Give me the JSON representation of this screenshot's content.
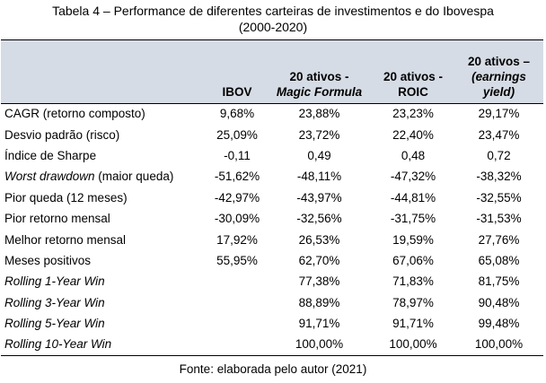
{
  "title": {
    "line1": "Tabela 4 – Performance de diferentes carteiras de investimentos e do Ibovespa",
    "line2": "(2000-2020)"
  },
  "columns": [
    {
      "line1": "",
      "line2": "",
      "line3": ""
    },
    {
      "line1": "",
      "line2": "",
      "line3": "IBOV"
    },
    {
      "line1": "",
      "line2": "20 ativos -",
      "line3": "Magic Formula"
    },
    {
      "line1": "",
      "line2": "20 ativos -",
      "line3": "ROIC"
    },
    {
      "line1": "20 ativos –",
      "line2": "(earnings",
      "line3": "yield)"
    }
  ],
  "rows": [
    {
      "label": "CAGR (retorno composto)",
      "italic": "",
      "rest": "",
      "values": [
        "9,68%",
        "23,88%",
        "23,23%",
        "29,17%"
      ]
    },
    {
      "label": "Desvio padrão (risco)",
      "italic": "",
      "rest": "",
      "values": [
        "25,09%",
        "23,72%",
        "22,40%",
        "23,47%"
      ]
    },
    {
      "label": "Índice de Sharpe",
      "italic": "",
      "rest": "",
      "values": [
        "-0,11",
        "0,49",
        "0,48",
        "0,72"
      ]
    },
    {
      "label": "",
      "italic": "Worst drawdown",
      "rest": " (maior queda)",
      "values": [
        "-51,62%",
        "-48,11%",
        "-47,32%",
        "-38,32%"
      ]
    },
    {
      "label": "Pior queda (12 meses)",
      "italic": "",
      "rest": "",
      "values": [
        "-42,97%",
        "-43,97%",
        "-44,81%",
        "-32,55%"
      ]
    },
    {
      "label": "Pior retorno mensal",
      "italic": "",
      "rest": "",
      "values": [
        "-30,09%",
        "-32,56%",
        "-31,75%",
        "-31,53%"
      ]
    },
    {
      "label": "Melhor retorno mensal",
      "italic": "",
      "rest": "",
      "values": [
        "17,92%",
        "26,53%",
        "19,59%",
        "27,76%"
      ]
    },
    {
      "label": "Meses positivos",
      "italic": "",
      "rest": "",
      "values": [
        "55,95%",
        "62,70%",
        "67,06%",
        "65,08%"
      ]
    },
    {
      "label": "",
      "italic": "Rolling 1-Year Win",
      "rest": "",
      "values": [
        "",
        "77,38%",
        "71,83%",
        "81,75%"
      ]
    },
    {
      "label": "",
      "italic": "Rolling 3-Year Win",
      "rest": "",
      "values": [
        "",
        "88,89%",
        "78,97%",
        "90,48%"
      ]
    },
    {
      "label": "",
      "italic": "Rolling 5-Year Win",
      "rest": "",
      "values": [
        "",
        "91,71%",
        "91,71%",
        "99,48%"
      ]
    },
    {
      "label": "",
      "italic": "Rolling 10-Year Win",
      "rest": "",
      "values": [
        "",
        "100,00%",
        "100,00%",
        "100,00%"
      ]
    }
  ],
  "source": "Fonte: elaborada pelo autor (2021)"
}
